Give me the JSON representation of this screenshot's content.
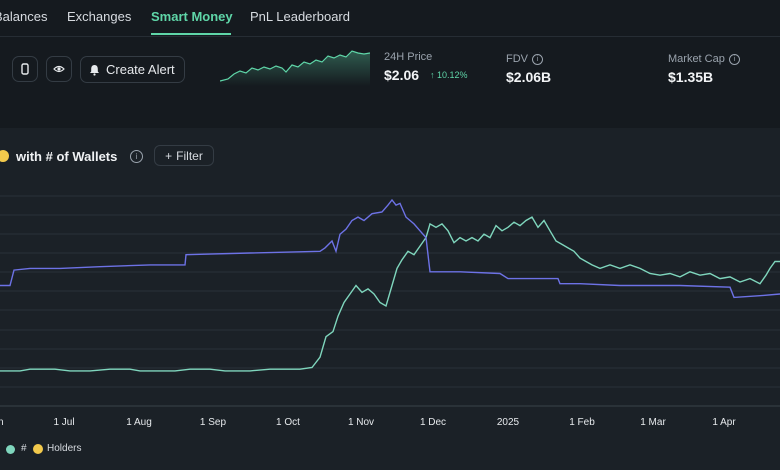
{
  "nav": {
    "tabs": [
      {
        "label": "Balances",
        "active": false
      },
      {
        "label": "Exchanges",
        "active": false
      },
      {
        "label": "Smart Money",
        "active": true
      },
      {
        "label": "PnL Leaderboard",
        "active": false
      }
    ],
    "accent_color": "#5fd6a8"
  },
  "toolbar": {
    "icons": [
      "copy-icon",
      "eye-icon"
    ],
    "alert_label": "Create Alert",
    "alert_icon": "bell-icon"
  },
  "stats": {
    "price_label": "24H Price",
    "price_value": "$2.06",
    "price_change": "10.12%",
    "fdv_label": "FDV",
    "fdv_value": "$2.06B",
    "mcap_label": "Market Cap",
    "mcap_value": "$1.35B"
  },
  "chart_panel": {
    "title": "with # of Wallets",
    "filter_label": "Filter",
    "legend_hash": "#",
    "legend_text": "Holders"
  },
  "chart_data": {
    "type": "line",
    "x_tick_labels": [
      "n",
      "1 Jul",
      "1 Aug",
      "1 Sep",
      "1 Oct",
      "1 Nov",
      "1 Dec",
      "2025",
      "1 Feb",
      "1 Mar",
      "1 Apr"
    ],
    "grid": true,
    "y_axis_labels_visible": false,
    "series": [
      {
        "name": "Holders",
        "color": "#7fd6bd",
        "points": [
          [
            0,
            0.1
          ],
          [
            20,
            0.1
          ],
          [
            30,
            0.11
          ],
          [
            55,
            0.11
          ],
          [
            70,
            0.1
          ],
          [
            90,
            0.1
          ],
          [
            110,
            0.11
          ],
          [
            130,
            0.11
          ],
          [
            140,
            0.1
          ],
          [
            175,
            0.1
          ],
          [
            190,
            0.11
          ],
          [
            210,
            0.11
          ],
          [
            225,
            0.1
          ],
          [
            250,
            0.1
          ],
          [
            270,
            0.11
          ],
          [
            300,
            0.11
          ],
          [
            312,
            0.12
          ],
          [
            320,
            0.18
          ],
          [
            326,
            0.3
          ],
          [
            333,
            0.33
          ],
          [
            338,
            0.42
          ],
          [
            344,
            0.5
          ],
          [
            350,
            0.55
          ],
          [
            356,
            0.6
          ],
          [
            362,
            0.56
          ],
          [
            368,
            0.58
          ],
          [
            374,
            0.55
          ],
          [
            380,
            0.5
          ],
          [
            386,
            0.48
          ],
          [
            392,
            0.6
          ],
          [
            397,
            0.7
          ],
          [
            402,
            0.75
          ],
          [
            408,
            0.8
          ],
          [
            414,
            0.78
          ],
          [
            420,
            0.83
          ],
          [
            426,
            0.88
          ],
          [
            430,
            0.96
          ],
          [
            436,
            0.94
          ],
          [
            442,
            0.96
          ],
          [
            448,
            0.92
          ],
          [
            454,
            0.85
          ],
          [
            460,
            0.88
          ],
          [
            466,
            0.86
          ],
          [
            472,
            0.88
          ],
          [
            478,
            0.86
          ],
          [
            484,
            0.9
          ],
          [
            490,
            0.88
          ],
          [
            496,
            0.95
          ],
          [
            502,
            0.92
          ],
          [
            508,
            0.94
          ],
          [
            514,
            0.97
          ],
          [
            520,
            0.95
          ],
          [
            526,
            0.98
          ],
          [
            532,
            1.0
          ],
          [
            538,
            0.94
          ],
          [
            544,
            0.98
          ],
          [
            550,
            0.92
          ],
          [
            556,
            0.86
          ],
          [
            562,
            0.84
          ],
          [
            568,
            0.82
          ],
          [
            574,
            0.8
          ],
          [
            580,
            0.76
          ],
          [
            586,
            0.74
          ],
          [
            592,
            0.72
          ],
          [
            600,
            0.7
          ],
          [
            610,
            0.72
          ],
          [
            620,
            0.7
          ],
          [
            630,
            0.72
          ],
          [
            640,
            0.7
          ],
          [
            650,
            0.67
          ],
          [
            660,
            0.66
          ],
          [
            670,
            0.67
          ],
          [
            680,
            0.65
          ],
          [
            690,
            0.68
          ],
          [
            700,
            0.66
          ],
          [
            710,
            0.67
          ],
          [
            720,
            0.64
          ],
          [
            730,
            0.65
          ],
          [
            740,
            0.62
          ],
          [
            750,
            0.64
          ],
          [
            760,
            0.61
          ],
          [
            766,
            0.66
          ],
          [
            770,
            0.7
          ],
          [
            775,
            0.74
          ],
          [
            780,
            0.74
          ]
        ]
      },
      {
        "name": "# of Wallets",
        "color": "#6d72e6",
        "points": [
          [
            0,
            0.6
          ],
          [
            10,
            0.6
          ],
          [
            14,
            0.69
          ],
          [
            30,
            0.7
          ],
          [
            60,
            0.7
          ],
          [
            100,
            0.71
          ],
          [
            150,
            0.72
          ],
          [
            185,
            0.72
          ],
          [
            186,
            0.78
          ],
          [
            250,
            0.79
          ],
          [
            320,
            0.8
          ],
          [
            325,
            0.82
          ],
          [
            332,
            0.86
          ],
          [
            336,
            0.8
          ],
          [
            340,
            0.9
          ],
          [
            346,
            0.93
          ],
          [
            352,
            0.98
          ],
          [
            358,
            1.0
          ],
          [
            364,
            0.98
          ],
          [
            372,
            1.02
          ],
          [
            382,
            1.03
          ],
          [
            388,
            1.07
          ],
          [
            392,
            1.1
          ],
          [
            396,
            1.07
          ],
          [
            400,
            1.08
          ],
          [
            406,
            1.0
          ],
          [
            414,
            0.96
          ],
          [
            420,
            0.92
          ],
          [
            426,
            0.88
          ],
          [
            430,
            0.68
          ],
          [
            460,
            0.68
          ],
          [
            500,
            0.67
          ],
          [
            508,
            0.64
          ],
          [
            530,
            0.64
          ],
          [
            558,
            0.64
          ],
          [
            560,
            0.61
          ],
          [
            580,
            0.61
          ],
          [
            620,
            0.6
          ],
          [
            680,
            0.6
          ],
          [
            730,
            0.59
          ],
          [
            734,
            0.53
          ],
          [
            760,
            0.54
          ],
          [
            780,
            0.55
          ]
        ]
      }
    ]
  }
}
